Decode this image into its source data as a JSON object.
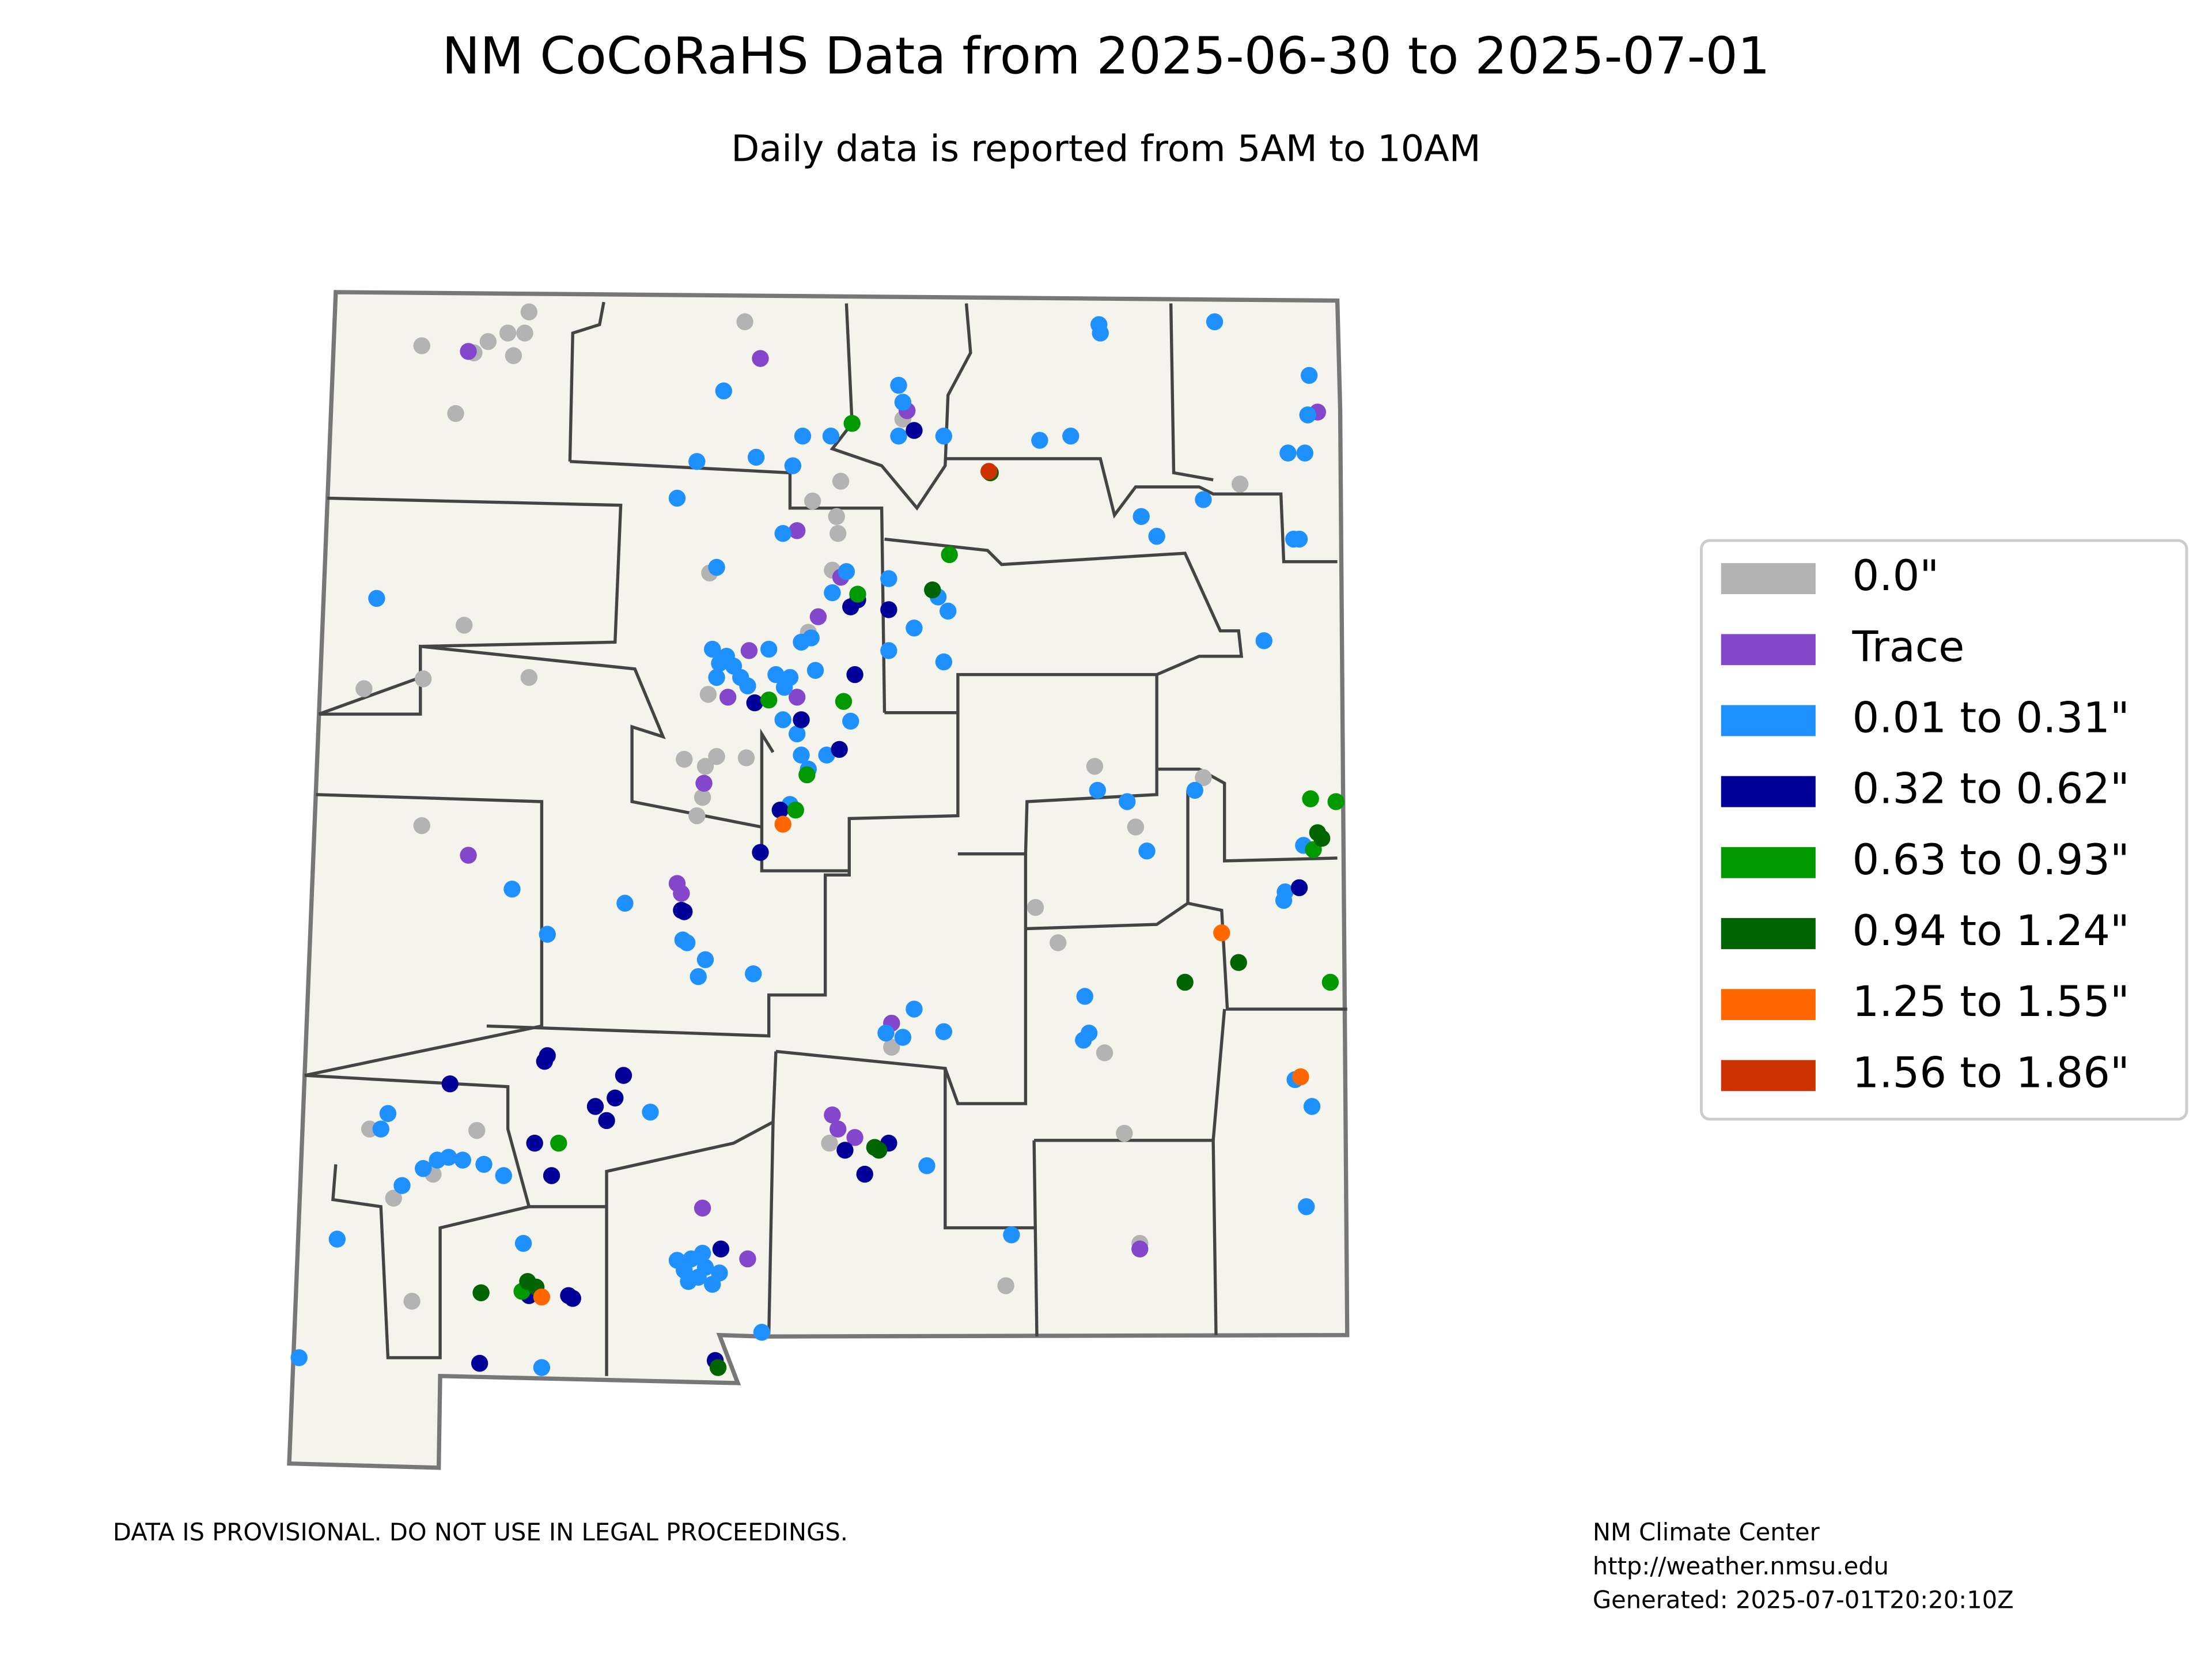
{
  "title": "NM CoCoRaHS Data from 2025-06-30 to 2025-07-01",
  "subtitle": "Daily data is reported from 5AM to 10AM",
  "legend": {
    "items": [
      {
        "label": "0.0\"",
        "color": "#b3b3b3"
      },
      {
        "label": "Trace",
        "color": "#8447cc"
      },
      {
        "label": "0.01 to 0.31\"",
        "color": "#1e90ff"
      },
      {
        "label": "0.32 to 0.62\"",
        "color": "#000099"
      },
      {
        "label": "0.63 to 0.93\"",
        "color": "#009900"
      },
      {
        "label": "0.94 to 1.24\"",
        "color": "#006400"
      },
      {
        "label": "1.25 to 1.55\"",
        "color": "#ff6600"
      },
      {
        "label": "1.56 to 1.86\"",
        "color": "#cc3300"
      }
    ]
  },
  "footer": {
    "disclaimer": "DATA IS PROVISIONAL. DO NOT USE IN LEGAL PROCEEDINGS.",
    "credit_lines": [
      "NM Climate Center",
      "http://weather.nmsu.edu",
      "Generated: 2025-07-01T20:20:10Z"
    ]
  }
}
